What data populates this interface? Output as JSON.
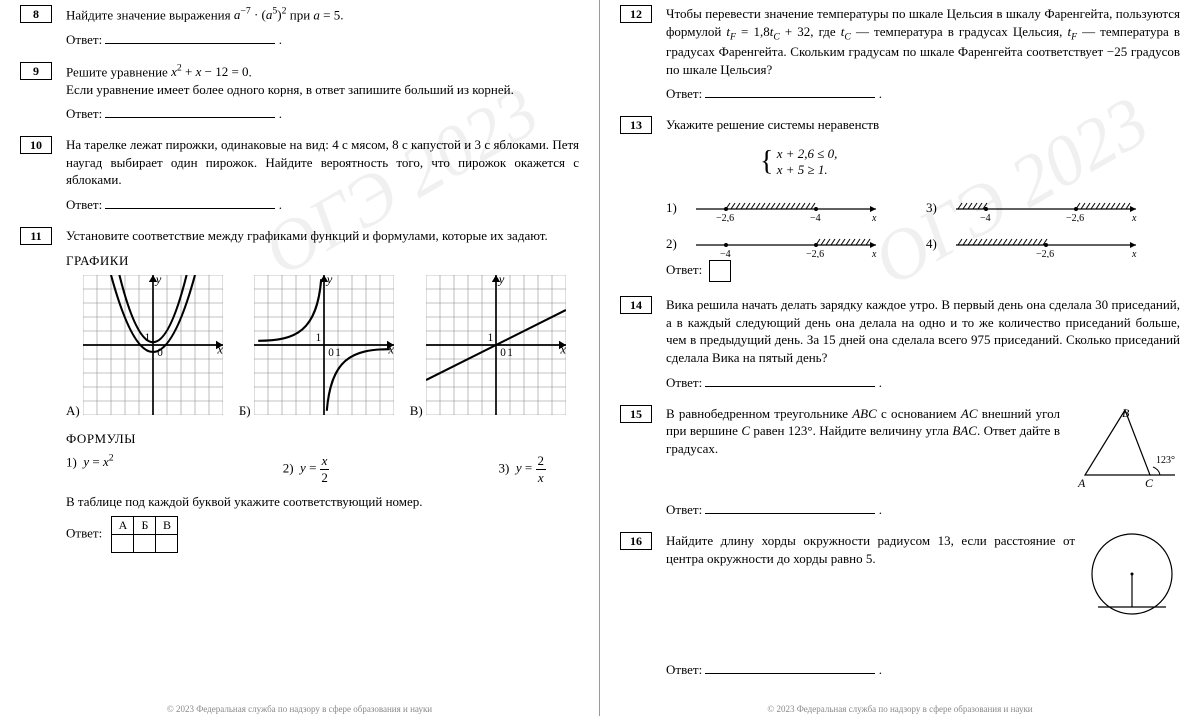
{
  "watermark": "ОГЭ 2023",
  "left": {
    "t8": {
      "num": "8",
      "text_before": "Найдите значение выражения ",
      "expr_html": "<span class='it'>a</span><sup>−7</sup> · (<span class='it'>a</span><sup>5</sup>)<sup>2</sup>",
      "text_after": " при ",
      "cond_html": "<span class='it'>a</span> = 5",
      "answer_label": "Ответ:"
    },
    "t9": {
      "num": "9",
      "text_before": "Решите уравнение ",
      "eq_html": "<span class='it'>x</span><sup>2</sup> + <span class='it'>x</span> − 12 = 0",
      "text_line2": "Если уравнение имеет более одного корня, в ответ запишите больший из корней.",
      "answer_label": "Ответ:"
    },
    "t10": {
      "num": "10",
      "text": "На тарелке лежат пирожки, одинаковые на вид: 4 с мясом, 8 с капустой и 3 с яблоками. Петя наугад выбирает один пирожок. Найдите вероятность того, что пирожок окажется с яблоками.",
      "answer_label": "Ответ:"
    },
    "t11": {
      "num": "11",
      "text": "Установите соответствие между графиками функций и формулами, которые их задают.",
      "heading_graphs": "ГРАФИКИ",
      "graph_labels": [
        "А)",
        "Б)",
        "В)"
      ],
      "heading_formulas": "ФОРМУЛЫ",
      "formulas": [
        {
          "n": "1)",
          "html": "<span class='it'>y</span> = <span class='it'>x</span><sup>2</sup>"
        },
        {
          "n": "2)",
          "html": "<span class='it'>y</span> = <span style='display:inline-block;vertical-align:middle;text-align:center;'><span style='display:block;border-bottom:1px solid #000;padding:0 2px;'><span class='it'>x</span></span><span style='display:block;'>2</span></span>"
        },
        {
          "n": "3)",
          "html": "<span class='it'>y</span> = <span style='display:inline-block;vertical-align:middle;text-align:center;'><span style='display:block;border-bottom:1px solid #000;padding:0 2px;'>2</span><span style='display:block;'><span class='it'>x</span></span></span>"
        }
      ],
      "table_caption": "В таблице под каждой буквой укажите соответствующий номер.",
      "table_headers": [
        "А",
        "Б",
        "В"
      ],
      "answer_label": "Ответ:"
    }
  },
  "right": {
    "t12": {
      "num": "12",
      "text_html": "Чтобы перевести значение температуры по шкале Цельсия в шкалу Фаренгейта, пользуются формулой <span class='it'>t<sub>F</sub></span> = 1,8<span class='it'>t<sub>C</sub></span> + 32, где <span class='it'>t<sub>C</sub></span> — температура в градусах Цельсия, <span class='it'>t<sub>F</sub></span> — температура в градусах Фаренгейта. Скольким градусам по шкале Фаренгейта соответствует −25 градусов по шкале Цельсия?",
      "answer_label": "Ответ:"
    },
    "t13": {
      "num": "13",
      "text": "Укажите решение системы неравенств",
      "sys_lines": [
        "<span class='it'>x</span> + 2,6 ≤ 0,",
        "<span class='it'>x</span> + 5 ≥ 1."
      ],
      "options": [
        {
          "n": "1)",
          "a": "−2,6",
          "b": "−4",
          "shade": "between"
        },
        {
          "n": "2)",
          "a": "−4",
          "b": "−2,6",
          "shade": "right"
        },
        {
          "n": "3)",
          "a": "−4",
          "b": "−2,6",
          "shade": "outer"
        },
        {
          "n": "4)",
          "a": "−2,6",
          "b": "",
          "shade": "left-single"
        }
      ],
      "answer_label": "Ответ:"
    },
    "t14": {
      "num": "14",
      "text": "Вика решила начать делать зарядку каждое утро. В первый день она сделала 30 приседаний, а в каждый следующий день она делала на одно и то же количество приседаний больше, чем в предыдущий день. За 15 дней она сделала всего 975 приседаний. Сколько приседаний сделала Вика на пятый день?",
      "answer_label": "Ответ:"
    },
    "t15": {
      "num": "15",
      "text_html": "В равнобедренном треугольнике <span class='it'>ABC</span> с основанием <span class='it'>AC</span> внешний угол при вершине <span class='it'>C</span> равен 123°. Найдите величину угла <span class='it'>BAC</span>. Ответ дайте в градусах.",
      "tri_labels": {
        "B": "B",
        "A": "A",
        "C": "C",
        "angle": "123°"
      },
      "answer_label": "Ответ:"
    },
    "t16": {
      "num": "16",
      "text": "Найдите длину хорды окружности радиусом 13, если расстояние от центра окружности до хорды равно 5.",
      "answer_label": "Ответ:"
    }
  },
  "chart_style": {
    "grid_cells": 10,
    "grid_color": "#888",
    "axis_color": "#000",
    "curve_color": "#000",
    "curve_width": 1.5,
    "grid_width": 0.4,
    "axis_width": 1.2,
    "label_font": 11
  },
  "numberline_style": {
    "line_color": "#000",
    "hatch_color": "#000",
    "line_width": 1.2,
    "hatch_height": 6,
    "font_size": 11
  }
}
